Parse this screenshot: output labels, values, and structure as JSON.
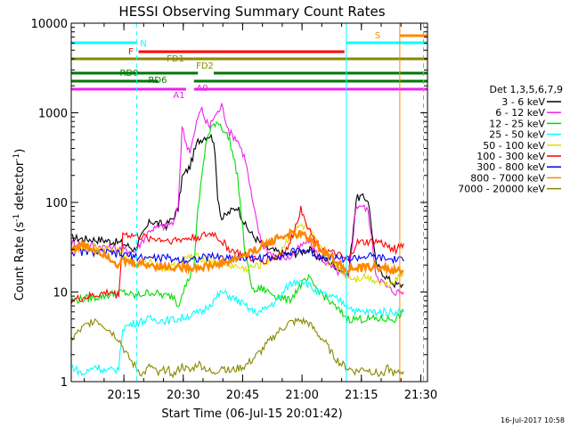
{
  "chart_data": {
    "type": "line",
    "title": "HESSI Observing Summary Count Rates",
    "xlabel": "Start Time (06-Jul-15 20:01:42)",
    "ylabel_main": "Count Rate (s",
    "ylabel_sup1": "-1",
    "ylabel_mid": " detector",
    "ylabel_sup2": "-1",
    "ylabel_end": ")",
    "date_stamp": "16-Jul-2017 10:58",
    "yscale": "log",
    "ylim": [
      1,
      10000
    ],
    "xlim": [
      0,
      90
    ],
    "x_units": "minutes after 20:01:42",
    "x_ticks": [
      {
        "x": 13.3,
        "label": "20:15"
      },
      {
        "x": 28.3,
        "label": "20:30"
      },
      {
        "x": 43.3,
        "label": "20:45"
      },
      {
        "x": 58.3,
        "label": "21:00"
      },
      {
        "x": 73.3,
        "label": "21:15"
      },
      {
        "x": 88.3,
        "label": "21:30"
      }
    ],
    "y_ticks": [
      {
        "v": 1,
        "label": "1"
      },
      {
        "v": 10,
        "label": "10"
      },
      {
        "v": 100,
        "label": "100"
      },
      {
        "v": 1000,
        "label": "1000"
      },
      {
        "v": 10000,
        "label": "10000"
      }
    ],
    "legend": {
      "title": "Det 1,3,5,6,7,9",
      "placement": "right"
    },
    "series": [
      {
        "name": "3 - 6 keV",
        "color": "#000000",
        "x": [
          0,
          8,
          13,
          16,
          20,
          24,
          26,
          27,
          28,
          29,
          30,
          31,
          32,
          34,
          35,
          36,
          37,
          38,
          40,
          42,
          44,
          46,
          48,
          50,
          52,
          55,
          58,
          60,
          62,
          65,
          68,
          70,
          72,
          73,
          75,
          77,
          78,
          80,
          82,
          84
        ],
        "y": [
          40,
          38,
          35,
          30,
          62,
          55,
          70,
          85,
          190,
          220,
          250,
          360,
          480,
          550,
          560,
          500,
          120,
          65,
          78,
          90,
          55,
          42,
          35,
          30,
          28,
          26,
          28,
          30,
          25,
          22,
          18,
          15,
          110,
          115,
          108,
          20,
          18,
          14,
          12,
          12
        ]
      },
      {
        "name": "6 - 12 keV",
        "color": "#ee22ee",
        "x": [
          0,
          8,
          13,
          16,
          20,
          24,
          26,
          27,
          28,
          29,
          30,
          31,
          32,
          33,
          34,
          35,
          36,
          37,
          38,
          40,
          42,
          44,
          46,
          48,
          50,
          52,
          55,
          58,
          60,
          62,
          65,
          68,
          70,
          72,
          73,
          75,
          77,
          78,
          80,
          82,
          84
        ],
        "y": [
          35,
          32,
          30,
          28,
          50,
          55,
          60,
          90,
          700,
          460,
          380,
          550,
          900,
          1100,
          800,
          700,
          900,
          1000,
          1200,
          600,
          500,
          300,
          90,
          35,
          28,
          25,
          24,
          32,
          38,
          27,
          20,
          16,
          14,
          90,
          95,
          80,
          16,
          14,
          11,
          10,
          10
        ]
      },
      {
        "name": "12 - 25 keV",
        "color": "#00dd00",
        "x": [
          0,
          8,
          13,
          16,
          20,
          24,
          26,
          27,
          28,
          29,
          30,
          31,
          32,
          33,
          34,
          35,
          36,
          37,
          38,
          40,
          42,
          44,
          46,
          48,
          50,
          52,
          55,
          58,
          60,
          62,
          65,
          68,
          70,
          72,
          75,
          78,
          80,
          82,
          84
        ],
        "y": [
          8,
          9,
          10,
          9,
          10,
          9,
          9,
          7,
          10,
          12,
          15,
          20,
          80,
          200,
          450,
          600,
          750,
          800,
          700,
          500,
          200,
          25,
          10,
          11,
          10,
          9,
          8,
          12,
          14,
          11,
          8,
          6,
          5,
          5,
          5,
          5,
          5,
          5,
          6
        ]
      },
      {
        "name": "25 - 50 keV",
        "color": "#00ffff",
        "x": [
          0,
          3,
          6,
          9,
          12,
          13,
          16,
          20,
          24,
          27,
          30,
          33,
          36,
          38,
          40,
          42,
          44,
          46,
          48,
          50,
          52,
          55,
          58,
          60,
          62,
          65,
          68,
          70,
          72,
          75,
          78,
          80,
          82,
          84
        ],
        "y": [
          1.5,
          1.2,
          1.5,
          1.3,
          1.4,
          4,
          4.5,
          5,
          4.8,
          5,
          5.5,
          6,
          8,
          10,
          9,
          8,
          7,
          6,
          6,
          7,
          8,
          12,
          14,
          12,
          10,
          9,
          8,
          7,
          6,
          6,
          6,
          6,
          6,
          6
        ]
      },
      {
        "name": "50 - 100 keV",
        "color": "#dddd00",
        "x": [
          0,
          8,
          13,
          16,
          20,
          24,
          27,
          30,
          33,
          36,
          40,
          44,
          48,
          52,
          55,
          58,
          60,
          62,
          65,
          68,
          70,
          72,
          74,
          76,
          78,
          80,
          82,
          84
        ],
        "y": [
          30,
          32,
          28,
          20,
          22,
          18,
          20,
          25,
          24,
          22,
          20,
          18,
          20,
          25,
          40,
          55,
          50,
          35,
          22,
          18,
          15,
          14,
          15,
          14,
          13,
          12,
          14,
          16
        ]
      },
      {
        "name": "100 - 300 keV",
        "color": "#ff0000",
        "x": [
          0,
          5,
          10,
          12,
          13,
          16,
          20,
          24,
          27,
          30,
          33,
          36,
          40,
          44,
          48,
          52,
          55,
          57,
          58,
          59,
          60,
          62,
          65,
          68,
          70,
          72,
          75,
          78,
          80,
          82,
          84
        ],
        "y": [
          8,
          9,
          10,
          9,
          45,
          42,
          40,
          38,
          38,
          40,
          42,
          45,
          30,
          25,
          22,
          25,
          32,
          60,
          85,
          70,
          50,
          35,
          28,
          25,
          22,
          35,
          36,
          36,
          32,
          30,
          35
        ]
      },
      {
        "name": "300 - 800 keV",
        "color": "#0000ff",
        "x": [
          0,
          5,
          10,
          13,
          16,
          20,
          24,
          27,
          30,
          33,
          36,
          40,
          44,
          48,
          52,
          55,
          58,
          60,
          62,
          65,
          68,
          70,
          72,
          75,
          78,
          80,
          82,
          84
        ],
        "y": [
          28,
          28,
          27,
          26,
          25,
          24,
          24,
          23,
          23,
          24,
          25,
          24,
          24,
          24,
          25,
          27,
          30,
          28,
          26,
          25,
          24,
          23,
          24,
          25,
          24,
          23,
          23,
          22
        ]
      },
      {
        "name": "800 - 7000 keV",
        "color": "#ff8800",
        "x": [
          0,
          3,
          6,
          9,
          12,
          13,
          16,
          20,
          24,
          27,
          30,
          33,
          36,
          40,
          44,
          48,
          52,
          55,
          58,
          60,
          62,
          65,
          68,
          70,
          72,
          75,
          78,
          80,
          82,
          84
        ],
        "y": [
          30,
          33,
          30,
          26,
          20,
          22,
          21,
          20,
          19,
          19,
          19,
          19,
          20,
          22,
          26,
          32,
          40,
          44,
          44,
          40,
          33,
          26,
          20,
          18,
          18,
          19,
          19,
          18,
          17,
          17
        ]
      },
      {
        "name": "7000 - 20000 keV",
        "color": "#888800",
        "x": [
          0,
          3,
          6,
          9,
          12,
          14,
          16,
          18,
          20,
          22,
          24,
          26,
          28,
          30,
          32,
          34,
          36,
          38,
          40,
          42,
          44,
          46,
          48,
          50,
          52,
          55,
          58,
          60,
          62,
          64,
          66,
          68,
          70,
          72,
          74,
          76,
          78,
          80,
          82,
          84
        ],
        "y": [
          3,
          4,
          5,
          4,
          3,
          2,
          1.5,
          1.2,
          1.5,
          1.2,
          1.4,
          1.2,
          1.5,
          1.3,
          1.6,
          1.4,
          1.2,
          1.5,
          1.3,
          1.4,
          1.5,
          1.8,
          2.2,
          2.8,
          3.5,
          4.5,
          4.8,
          4.5,
          3.5,
          2.8,
          2,
          1.6,
          1.4,
          1.3,
          1.4,
          1.3,
          1.2,
          1.4,
          1.2,
          1.3
        ]
      }
    ],
    "flag_bars": [
      {
        "label": "N",
        "color": "#00ffff",
        "segments": [
          [
            0,
            16.5
          ],
          [
            69.5,
            90
          ]
        ]
      },
      {
        "label": "S",
        "color": "#ff8800",
        "segments": [
          [
            83,
            90
          ]
        ]
      },
      {
        "label": "F",
        "color": "#ff0000",
        "segments": [
          [
            17,
            69
          ]
        ]
      },
      {
        "label": "FD1",
        "color": "#888800",
        "segments": [
          [
            0,
            31
          ],
          [
            31,
            90
          ]
        ]
      },
      {
        "label": "FD2",
        "color": "#888800",
        "segments": []
      },
      {
        "label": "RD0",
        "color": "#007700",
        "segments": [
          [
            0,
            32
          ],
          [
            36,
            90
          ]
        ]
      },
      {
        "label": "RD6",
        "color": "#007700",
        "segments": [
          [
            0,
            22
          ],
          [
            31,
            90
          ]
        ]
      },
      {
        "label": "A0",
        "color": "#ee22ee",
        "segments": [
          [
            0,
            29
          ],
          [
            31,
            90
          ]
        ]
      },
      {
        "label": "A1",
        "color": "#ee22ee",
        "segments": []
      }
    ],
    "vertical_markers": [
      {
        "x": 16.5,
        "color": "#00ffff",
        "style": "dashed"
      },
      {
        "x": 69.5,
        "color": "#00ffff",
        "style": "solid"
      },
      {
        "x": 83,
        "color": "#ff8800",
        "style": "solid"
      },
      {
        "x": 89,
        "color": "#ff8800",
        "style": "dashed"
      }
    ]
  }
}
